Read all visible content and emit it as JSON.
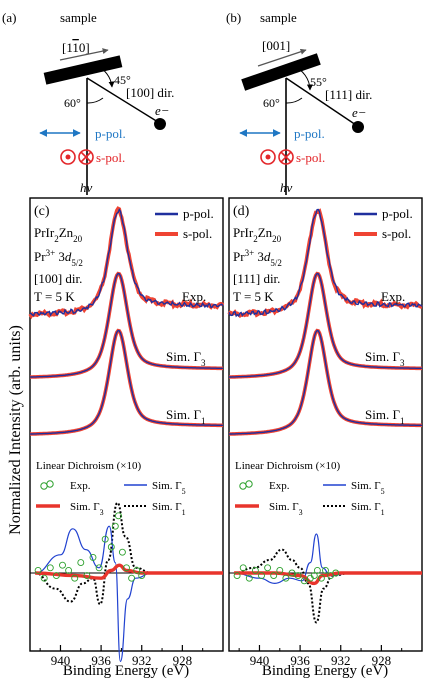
{
  "colors": {
    "p_pol": "#1f2f9e",
    "s_pol": "#ef4433",
    "exp": "#2ca02c",
    "sim_g5": "#2142d0",
    "sim_g3": "#e8342c",
    "sim_g1": "#000000",
    "axis": "#000000",
    "p_arrow": "#1f77c4",
    "s_arrow": "#e3262a"
  },
  "geometry_panels": [
    {
      "label": "(a)",
      "sample_label": "sample",
      "direction_on_sample": "[1̅1̅0]",
      "direction_text": "[1",
      "direction_bar": "1",
      "direction_tail": "0]",
      "angle_top": "45°",
      "angle_bottom": "60°",
      "emission_dir": "[100] dir.",
      "electron": "e−",
      "p_pol": "p-pol.",
      "s_pol": "s-pol.",
      "photon": "hν"
    },
    {
      "label": "(b)",
      "sample_label": "sample",
      "direction_text": "[001]",
      "angle_top": "55°",
      "angle_bottom": "60°",
      "emission_dir": "[111] dir.",
      "electron": "e−",
      "p_pol": "p-pol.",
      "s_pol": "s-pol.",
      "photon": "hν"
    }
  ],
  "y_axis_label": "Normalized Intensity (arb. units)",
  "chart_data": [
    {
      "type": "line",
      "panel_label": "(c)",
      "sample": "PrIr2Zn20",
      "core_level": "Pr3+ 3d5/2",
      "direction": "[100] dir.",
      "temperature": "T = 5 K",
      "xlabel": "Binding Energy (eV)",
      "xlim": [
        943,
        924
      ],
      "x_ticks": [
        940,
        936,
        932,
        928
      ],
      "legend_top": [
        "p-pol.",
        "s-pol."
      ],
      "spectra_labels": [
        "Exp.",
        "Sim. Γ3",
        "Sim. Γ1"
      ],
      "peak_position": 934.3,
      "ld_title": "Linear Dichroism (×10)",
      "ld_legend": [
        "Exp.",
        "Sim. Γ5",
        "Sim. Γ3",
        "Sim. Γ1"
      ],
      "ld_sim_g5_points": [
        [
          942.5,
          0.0
        ],
        [
          940,
          0.35
        ],
        [
          938.8,
          0.85
        ],
        [
          937.5,
          0.45
        ],
        [
          936.2,
          0.1
        ],
        [
          935.2,
          0.9
        ],
        [
          934.6,
          0.2
        ],
        [
          934.1,
          -1.7
        ],
        [
          933.4,
          -0.5
        ],
        [
          932.6,
          -0.1
        ],
        [
          931,
          0.0
        ],
        [
          924,
          0.0
        ]
      ],
      "ld_sim_g1_points": [
        [
          942.5,
          0.0
        ],
        [
          940.5,
          -0.3
        ],
        [
          939,
          -0.55
        ],
        [
          937.8,
          -0.2
        ],
        [
          936.8,
          -0.1
        ],
        [
          936.1,
          -0.6
        ],
        [
          935.3,
          0.25
        ],
        [
          934.4,
          1.35
        ],
        [
          933.6,
          0.7
        ],
        [
          932.6,
          0.1
        ],
        [
          931,
          0.0
        ],
        [
          924,
          0.0
        ]
      ],
      "ld_sim_g3_points": [
        [
          942.5,
          0.0
        ],
        [
          938.5,
          -0.05
        ],
        [
          936,
          -0.1
        ],
        [
          935,
          0.05
        ],
        [
          934.2,
          0.15
        ],
        [
          933.5,
          0.05
        ],
        [
          932,
          0.0
        ],
        [
          924,
          0.0
        ]
      ],
      "ld_exp_points": [
        [
          942.2,
          0.05
        ],
        [
          941.6,
          -0.1
        ],
        [
          941,
          0.1
        ],
        [
          940.4,
          -0.05
        ],
        [
          939.8,
          0.15
        ],
        [
          939.2,
          0.05
        ],
        [
          938.6,
          -0.1
        ],
        [
          938,
          0.2
        ],
        [
          937.4,
          -0.05
        ],
        [
          936.8,
          0.3
        ],
        [
          936.2,
          0.1
        ],
        [
          935.6,
          0.65
        ],
        [
          935,
          0.5
        ],
        [
          934.6,
          0.9
        ],
        [
          934.3,
          1.1
        ],
        [
          933.9,
          0.4
        ],
        [
          933.5,
          0.1
        ],
        [
          933,
          -0.1
        ],
        [
          932.5,
          0.05
        ],
        [
          932,
          -0.05
        ]
      ]
    },
    {
      "type": "line",
      "panel_label": "(d)",
      "sample": "PrIr2Zn20",
      "core_level": "Pr3+ 3d5/2",
      "direction": "[111] dir.",
      "temperature": "T = 5 K",
      "xlabel": "Binding Energy (eV)",
      "xlim": [
        943,
        924
      ],
      "x_ticks": [
        940,
        936,
        932,
        928
      ],
      "legend_top": [
        "p-pol.",
        "s-pol."
      ],
      "spectra_labels": [
        "Exp.",
        "Sim. Γ3",
        "Sim. Γ1"
      ],
      "peak_position": 934.3,
      "ld_title": "Linear Dichroism (×10)",
      "ld_legend": [
        "Exp.",
        "Sim. Γ5",
        "Sim. Γ3",
        "Sim. Γ1"
      ],
      "ld_sim_g5_points": [
        [
          942.5,
          0.0
        ],
        [
          940,
          -0.1
        ],
        [
          938.5,
          -0.2
        ],
        [
          937,
          -0.1
        ],
        [
          935.8,
          -0.15
        ],
        [
          935,
          0.2
        ],
        [
          934.4,
          0.75
        ],
        [
          933.8,
          0.1
        ],
        [
          933,
          -0.05
        ],
        [
          931,
          0.0
        ],
        [
          924,
          0.0
        ]
      ],
      "ld_sim_g1_points": [
        [
          942.5,
          0.0
        ],
        [
          940.5,
          0.1
        ],
        [
          939,
          0.25
        ],
        [
          937.8,
          0.45
        ],
        [
          936.8,
          0.25
        ],
        [
          936,
          0.1
        ],
        [
          935.2,
          -0.2
        ],
        [
          934.4,
          -0.95
        ],
        [
          933.7,
          -0.3
        ],
        [
          932.8,
          -0.05
        ],
        [
          931,
          0.0
        ],
        [
          924,
          0.0
        ]
      ],
      "ld_sim_g3_points": [
        [
          942.5,
          0.0
        ],
        [
          938.5,
          0.0
        ],
        [
          936,
          -0.05
        ],
        [
          934.6,
          -0.2
        ],
        [
          933.8,
          -0.05
        ],
        [
          932,
          0.0
        ],
        [
          924,
          0.0
        ]
      ],
      "ld_exp_points": [
        [
          942.2,
          -0.05
        ],
        [
          941.6,
          0.1
        ],
        [
          941,
          -0.1
        ],
        [
          940.4,
          0.05
        ],
        [
          939.8,
          -0.05
        ],
        [
          939.2,
          0.1
        ],
        [
          938.6,
          -0.05
        ],
        [
          938,
          0.05
        ],
        [
          937.4,
          -0.1
        ],
        [
          936.8,
          0.0
        ],
        [
          936.2,
          -0.05
        ],
        [
          935.6,
          -0.15
        ],
        [
          935,
          -0.1
        ],
        [
          934.6,
          -0.05
        ],
        [
          934.3,
          0.05
        ],
        [
          933.9,
          -0.1
        ],
        [
          933.5,
          0.05
        ],
        [
          933,
          -0.05
        ],
        [
          932.5,
          0.0
        ]
      ]
    }
  ]
}
